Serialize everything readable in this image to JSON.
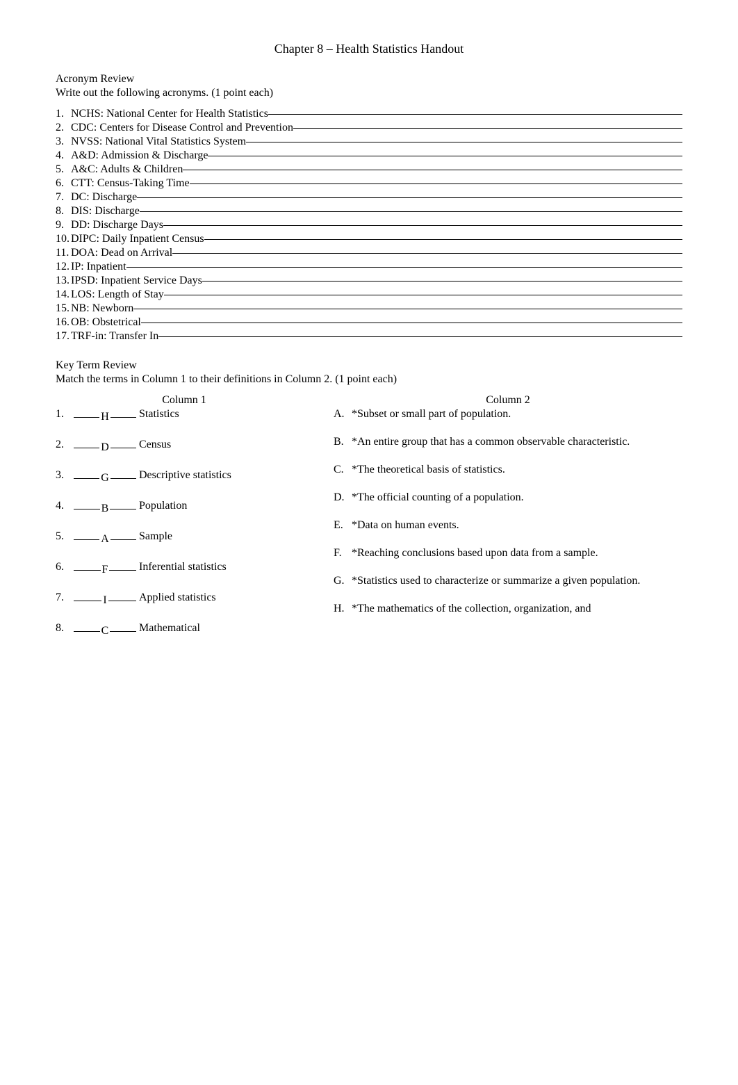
{
  "title": "Chapter 8 – Health Statistics Handout",
  "acronym_section": {
    "heading": "Acronym Review",
    "instruction": "Write out the following acronyms. (1 point each)",
    "items": [
      {
        "num": "1.",
        "text": "NCHS: National Center for Health Statistics"
      },
      {
        "num": "2.",
        "text": "CDC: Centers for Disease Control and Prevention"
      },
      {
        "num": "3.",
        "text": "NVSS: National Vital Statistics System"
      },
      {
        "num": "4.",
        "text": "A&D: Admission & Discharge"
      },
      {
        "num": "5.",
        "text": "A&C: Adults & Children"
      },
      {
        "num": "6.",
        "text": "CTT: Census-Taking Time"
      },
      {
        "num": "7.",
        "text": "DC: Discharge"
      },
      {
        "num": "8.",
        "text": "DIS: Discharge"
      },
      {
        "num": "9.",
        "text": "DD: Discharge Days"
      },
      {
        "num": "10.",
        "text": "DIPC: Daily Inpatient Census"
      },
      {
        "num": "11.",
        "text": "DOA: Dead on Arrival"
      },
      {
        "num": "12.",
        "text": "IP: Inpatient"
      },
      {
        "num": "13.",
        "text": "IPSD: Inpatient Service Days"
      },
      {
        "num": "14.",
        "text": "LOS: Length of Stay"
      },
      {
        "num": "15.",
        "text": "NB: Newborn"
      },
      {
        "num": "16.",
        "text": "OB: Obstetrical"
      },
      {
        "num": "17.",
        "text": "TRF-in: Transfer In"
      }
    ]
  },
  "match_section": {
    "heading": "Key Term Review",
    "instruction": "Match the terms in Column 1 to their definitions in Column 2.  (1 point each)",
    "col1_header": "Column 1",
    "col2_header": "Column 2",
    "left": [
      {
        "num": "1.",
        "ans": "H",
        "label": "Statistics"
      },
      {
        "num": "2.",
        "ans": "D",
        "label": "Census"
      },
      {
        "num": "3.",
        "ans": "G",
        "label": "Descriptive statistics"
      },
      {
        "num": "4.",
        "ans": "B",
        "label": "Population"
      },
      {
        "num": "5.",
        "ans": "A",
        "label": "Sample"
      },
      {
        "num": "6.",
        "ans": "F",
        "label": "Inferential statistics"
      },
      {
        "num": "7.",
        "ans": "I",
        "label": "Applied statistics"
      },
      {
        "num": "8.",
        "ans": "C",
        "label": "Mathematical"
      }
    ],
    "right": [
      {
        "letter": "A.",
        "def": "*Subset or small part of population."
      },
      {
        "letter": "B.",
        "def": "*An entire group that has a common observable characteristic."
      },
      {
        "letter": "C.",
        "def": "*The theoretical basis of statistics."
      },
      {
        "letter": "D.",
        "def": "*The official counting of a population."
      },
      {
        "letter": "E.",
        "def": "*Data on human events."
      },
      {
        "letter": "F.",
        "def": "*Reaching conclusions based upon data from a sample."
      },
      {
        "letter": "G.",
        "def": "*Statistics used to characterize or summarize a given population."
      },
      {
        "letter": "H.",
        "def": "*The mathematics of the collection, organization, and"
      }
    ]
  },
  "colors": {
    "text": "#000000",
    "background": "#ffffff",
    "underline": "#000000"
  },
  "typography": {
    "font_family": "Times New Roman",
    "body_fontsize_pt": 12,
    "title_fontsize_pt": 13
  }
}
